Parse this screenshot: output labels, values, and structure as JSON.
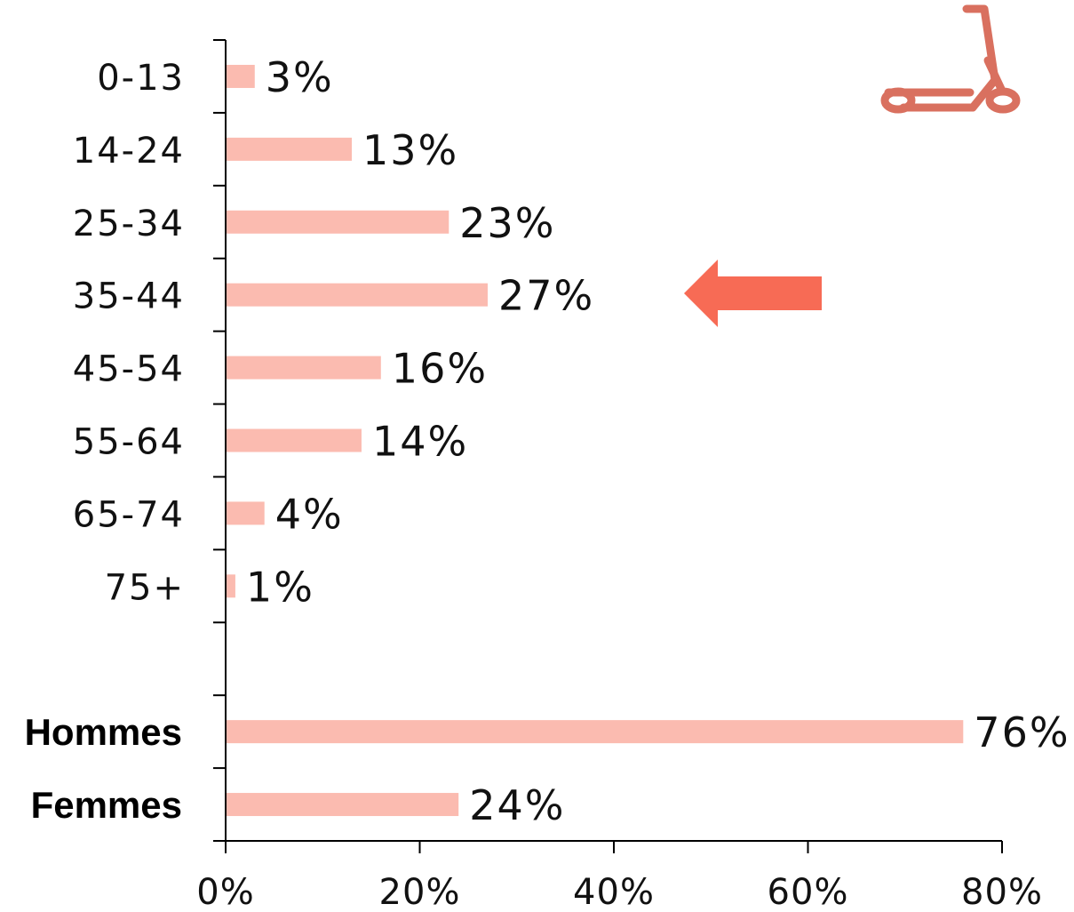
{
  "chart_data": {
    "type": "bar",
    "orientation": "horizontal",
    "categories": [
      "0-13",
      "14-24",
      "25-34",
      "35-44",
      "45-54",
      "55-64",
      "65-74",
      "75+",
      "",
      "Hommes",
      "Femmes"
    ],
    "bold_categories": [
      "Hommes",
      "Femmes"
    ],
    "values": [
      3,
      13,
      23,
      27,
      16,
      14,
      4,
      1,
      null,
      76,
      24
    ],
    "value_labels": [
      "3%",
      "13%",
      "23%",
      "27%",
      "16%",
      "14%",
      "4%",
      "1%",
      "",
      "76%",
      "24%"
    ],
    "xlim": [
      0,
      80
    ],
    "xticks": [
      0,
      20,
      40,
      60,
      80
    ],
    "xtick_labels": [
      "0%",
      "20%",
      "40%",
      "60%",
      "80%"
    ],
    "grid": false,
    "bar_color": "#fbbbb0",
    "highlight_category": "35-44",
    "highlight_arrow_color": "#f76b55",
    "icon": "scooter-icon",
    "icon_color": "#d9705f"
  }
}
